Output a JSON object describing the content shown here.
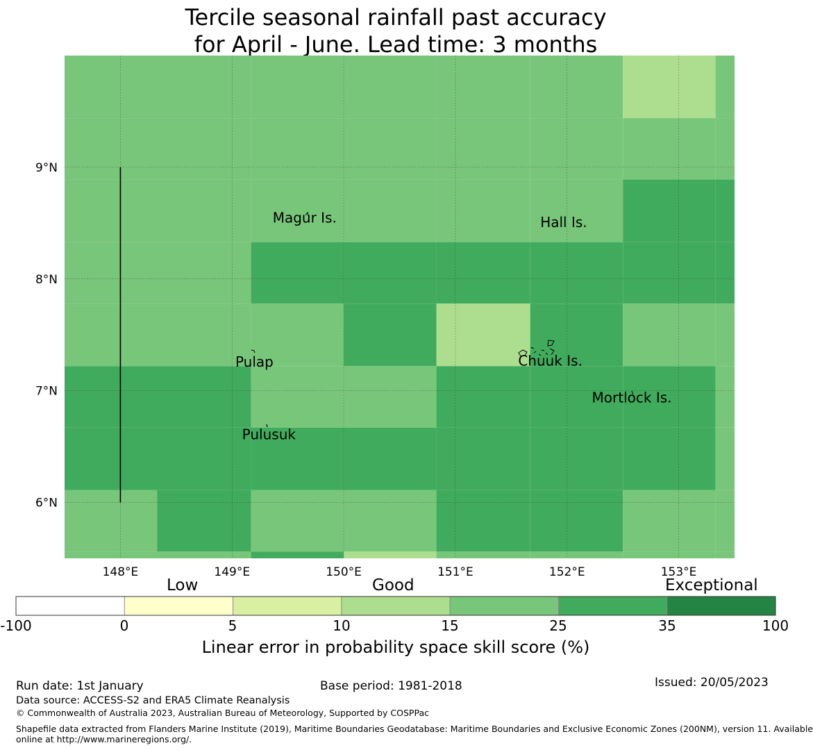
{
  "title": {
    "line1": "Tercile seasonal rainfall past accuracy",
    "line2": "for April - June. Lead time: 3 months"
  },
  "map": {
    "lon_range": [
      147.5,
      153.5
    ],
    "lat_range": [
      5.5,
      10.0
    ],
    "lon_ticks": [
      {
        "value": 148,
        "label": "148°E"
      },
      {
        "value": 149,
        "label": "149°E"
      },
      {
        "value": 150,
        "label": "150°E"
      },
      {
        "value": 151,
        "label": "151°E"
      },
      {
        "value": 152,
        "label": "152°E"
      },
      {
        "value": 153,
        "label": "153°E"
      }
    ],
    "lat_ticks": [
      {
        "value": 9,
        "label": "9°N"
      },
      {
        "value": 8,
        "label": "8°N"
      },
      {
        "value": 7,
        "label": "7°N"
      },
      {
        "value": 6,
        "label": "6°N"
      }
    ],
    "grid_lons": [
      147.5,
      148.33,
      149.17,
      150.0,
      150.83,
      151.67,
      152.5,
      153.33,
      153.5
    ],
    "grid_lats": [
      10.0,
      9.44,
      8.89,
      8.33,
      7.78,
      7.22,
      6.67,
      6.11,
      5.56,
      5.5
    ],
    "cell_classes": [
      [
        3,
        3,
        3,
        3,
        3,
        3,
        2,
        3
      ],
      [
        3,
        3,
        3,
        3,
        3,
        3,
        3,
        3
      ],
      [
        3,
        3,
        3,
        3,
        3,
        3,
        4,
        4
      ],
      [
        3,
        3,
        4,
        4,
        4,
        4,
        4,
        4
      ],
      [
        3,
        3,
        3,
        4,
        2,
        4,
        3,
        3
      ],
      [
        4,
        4,
        3,
        3,
        4,
        4,
        4,
        3
      ],
      [
        4,
        4,
        4,
        4,
        4,
        4,
        4,
        3
      ],
      [
        3,
        4,
        3,
        3,
        4,
        4,
        3,
        3
      ],
      [
        3,
        3,
        4,
        1,
        3,
        3,
        3,
        3
      ]
    ],
    "boundary_line": {
      "lon": 148.0,
      "lat_from": 6.0,
      "lat_to": 9.0
    },
    "places": [
      {
        "name": "Magur Is.",
        "lon": 149.65,
        "lat": 8.54
      },
      {
        "name": "Hall Is.",
        "lon": 151.97,
        "lat": 8.5
      },
      {
        "name": "Pulap",
        "lon": 149.2,
        "lat": 7.25
      },
      {
        "name": "Chuuk Is.",
        "lon": 151.85,
        "lat": 7.26
      },
      {
        "name": "Mortlock Is.",
        "lon": 152.58,
        "lat": 6.93
      },
      {
        "name": "Pulusuk",
        "lon": 149.33,
        "lat": 6.6
      }
    ]
  },
  "legend": {
    "categories": [
      "Low",
      "Good",
      "Exceptional"
    ],
    "tick_labels": [
      "-100",
      "0",
      "5",
      "10",
      "15",
      "25",
      "35",
      "100"
    ],
    "colors": [
      "#ffffff",
      "#ffffcc",
      "#d9f0a3",
      "#addd8e",
      "#78c679",
      "#41ab5d",
      "#238443"
    ],
    "label": "Linear error in probability space skill score (%)"
  },
  "footer": {
    "run_date": "Run date: 1st January",
    "base_period": "Base period: 1981-2018",
    "issued": "Issued: 20/05/2023",
    "data_source": "Data source: ACCESS-S2 and ERA5 Climate Reanalysis",
    "copyright": "© Commonwealth of Australia 2023, Australian Bureau of Meteorology, Supported by COSPPac",
    "shapefile_line1": "Shapefile data extracted from Flanders Marine Institute (2019), Maritime Boundaries Geodatabase: Maritime Boundaries and Exclusive Economic Zones (200NM), version 11. Available",
    "shapefile_line2": "online at http://www.marineregions.org/."
  },
  "colors": {
    "class_1": "#addd8e",
    "class_2": "#addd8e",
    "class_3": "#78c679",
    "class_4": "#41ab5d"
  }
}
